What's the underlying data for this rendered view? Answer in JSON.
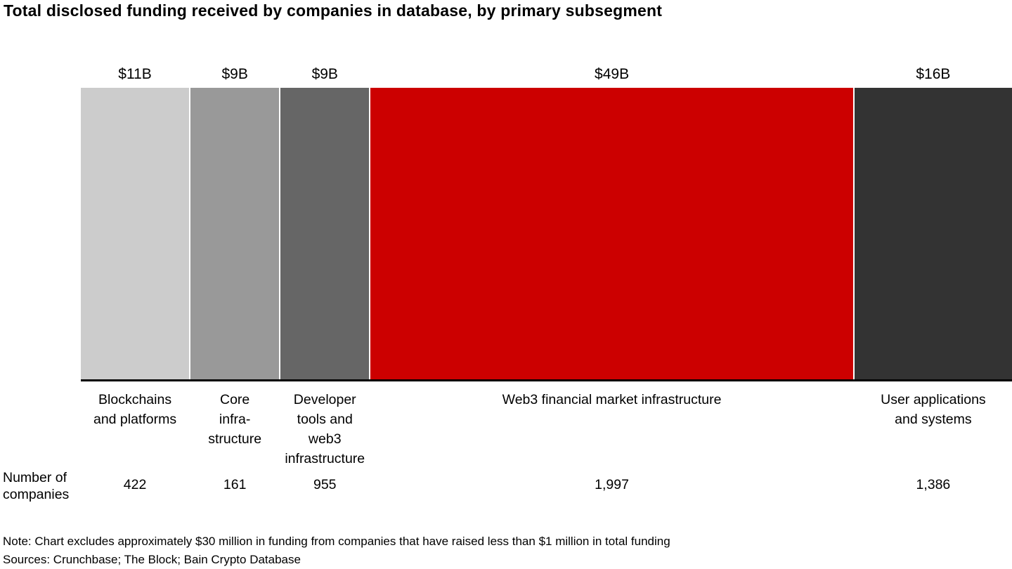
{
  "title": "Total disclosed funding received by companies in database, by primary subsegment",
  "chart_data": {
    "type": "bar",
    "variant": "variable-width horizontal composition bar (marimekko-style, widths proportional to funding)",
    "unit": "USD billions",
    "total_funding_busd": 94,
    "row_label": "Number of\ncompanies",
    "segments": [
      {
        "label": "Blockchains\nand platforms",
        "funding_label": "$11B",
        "funding_busd": 11,
        "companies_label": "422",
        "companies": 422,
        "color": "#cccccc"
      },
      {
        "label": "Core\ninfra-\nstructure",
        "funding_label": "$9B",
        "funding_busd": 9,
        "companies_label": "161",
        "companies": 161,
        "color": "#999999"
      },
      {
        "label": "Developer\ntools and\nweb3\ninfrastructure",
        "funding_label": "$9B",
        "funding_busd": 9,
        "companies_label": "955",
        "companies": 955,
        "color": "#666666"
      },
      {
        "label": "Web3 financial market infrastructure",
        "funding_label": "$49B",
        "funding_busd": 49,
        "companies_label": "1,997",
        "companies": 1997,
        "color": "#cc0000"
      },
      {
        "label": "User applications\nand systems",
        "funding_label": "$16B",
        "funding_busd": 16,
        "companies_label": "1,386",
        "companies": 1386,
        "color": "#333333"
      }
    ],
    "colors": {
      "accent_red": "#cc0000",
      "axis_black": "#000000",
      "grays": [
        "#cccccc",
        "#999999",
        "#666666",
        "#333333"
      ]
    },
    "legend": "none",
    "grid": "off"
  },
  "footnotes": {
    "note": "Note: Chart excludes approximately $30 million in funding from companies that have raised less than $1 million in total funding",
    "sources": "Sources: Crunchbase; The Block; Bain Crypto Database"
  }
}
